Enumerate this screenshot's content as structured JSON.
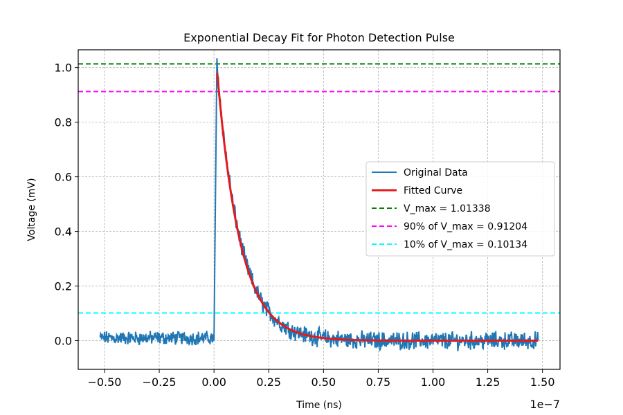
{
  "chart_data": {
    "type": "line",
    "title": "Exponential Decay Fit for Photon Detection Pulse",
    "xlabel": "Time (ns)",
    "ylabel": "Voltage (mV)",
    "x_offset_label": "1e−7",
    "xlim": [
      -0.62,
      1.58
    ],
    "ylim": [
      -0.105,
      1.065
    ],
    "xticks": [
      -0.5,
      -0.25,
      0.0,
      0.25,
      0.5,
      0.75,
      1.0,
      1.25,
      1.5
    ],
    "xtick_labels": [
      "−0.50",
      "−0.25",
      "0.00",
      "0.25",
      "0.50",
      "0.75",
      "1.00",
      "1.25",
      "1.50"
    ],
    "yticks": [
      0.0,
      0.2,
      0.4,
      0.6,
      0.8,
      1.0
    ],
    "ytick_labels": [
      "0.0",
      "0.2",
      "0.4",
      "0.6",
      "0.8",
      "1.0"
    ],
    "grid": true,
    "legend_position": "center-right",
    "original_data": {
      "name": "Original Data",
      "color": "#1f77b4",
      "x_start": -0.52,
      "x_end": 1.48,
      "pulse_start": 0.0,
      "peak_x": 0.013,
      "peak_value": 1.01338,
      "noise_amplitude": 0.02,
      "decay_tau": 0.105
    },
    "fitted_curve": {
      "name": "Fitted Curve",
      "color": "#e41a1c",
      "x_start": 0.015,
      "x_end": 1.48,
      "amplitude": 0.98,
      "tau": 0.105
    },
    "hlines": [
      {
        "name": "V_max = 1.01338",
        "value": 1.01338,
        "color": "#008000"
      },
      {
        "name": "90% of V_max = 0.91204",
        "value": 0.91204,
        "color": "#ff00ff"
      },
      {
        "name": "10% of V_max = 0.10134",
        "value": 0.10134,
        "color": "#00ffff"
      }
    ]
  }
}
